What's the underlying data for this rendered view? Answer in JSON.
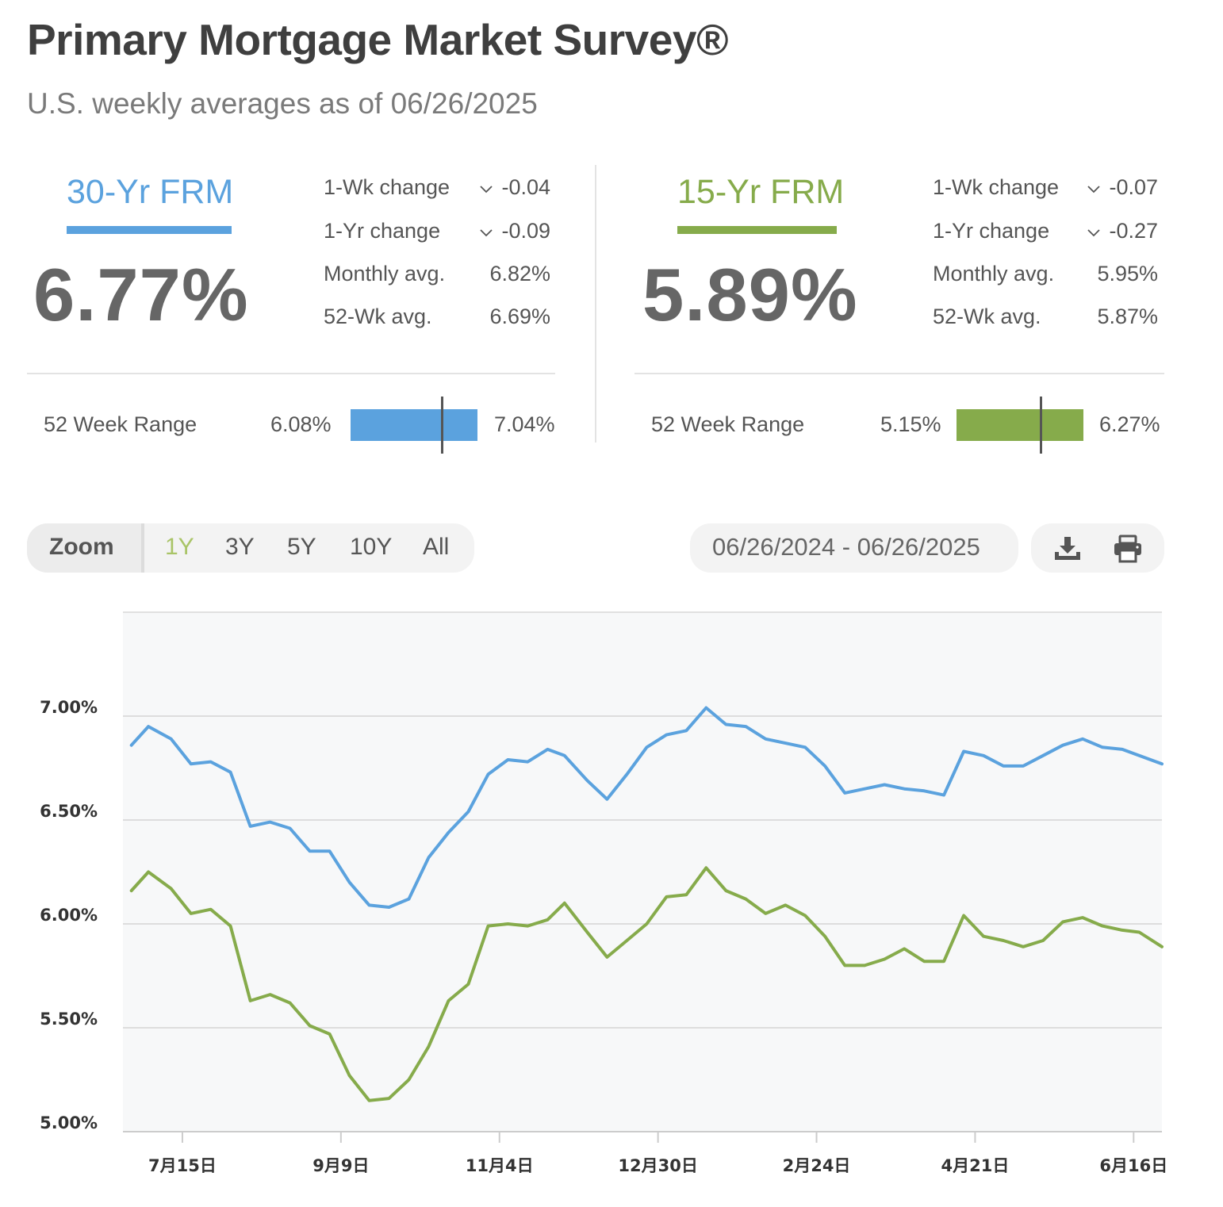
{
  "header": {
    "title": "Primary Mortgage Market Survey®",
    "subtitle": "U.S. weekly averages as of 06/26/2025"
  },
  "rates": [
    {
      "name": "30-Yr FRM",
      "color": "#5ba2de",
      "rate": "6.77%",
      "stats": [
        {
          "label": "1-Wk change",
          "value": "-0.04",
          "arrow": "down"
        },
        {
          "label": "1-Yr change",
          "value": "-0.09",
          "arrow": "down"
        },
        {
          "label": "Monthly avg.",
          "value": "6.82%"
        },
        {
          "label": "52-Wk avg.",
          "value": "6.69%"
        }
      ],
      "range": {
        "label": "52 Week Range",
        "low": "6.08%",
        "high": "7.04%",
        "low_value": 6.08,
        "high_value": 7.04,
        "current_value": 6.77
      }
    },
    {
      "name": "15-Yr FRM",
      "color": "#86ab4b",
      "rate": "5.89%",
      "stats": [
        {
          "label": "1-Wk change",
          "value": "-0.07",
          "arrow": "down"
        },
        {
          "label": "1-Yr change",
          "value": "-0.27",
          "arrow": "down"
        },
        {
          "label": "Monthly avg.",
          "value": "5.95%"
        },
        {
          "label": "52-Wk avg.",
          "value": "5.87%"
        }
      ],
      "range": {
        "label": "52 Week Range",
        "low": "5.15%",
        "high": "6.27%",
        "low_value": 5.15,
        "high_value": 6.27,
        "current_value": 5.89
      }
    }
  ],
  "toolbar": {
    "zoom_label": "Zoom",
    "zoom_options": [
      "1Y",
      "3Y",
      "5Y",
      "10Y",
      "All"
    ],
    "active_zoom": "1Y",
    "date_range": "06/26/2024 - 06/26/2025",
    "icons": [
      "download-icon",
      "print-icon"
    ]
  },
  "chart_data": {
    "type": "line",
    "x": [
      "2024-06-27",
      "2024-07-03",
      "2024-07-11",
      "2024-07-18",
      "2024-07-25",
      "2024-08-01",
      "2024-08-08",
      "2024-08-15",
      "2024-08-22",
      "2024-08-29",
      "2024-09-05",
      "2024-09-12",
      "2024-09-19",
      "2024-09-26",
      "2024-10-03",
      "2024-10-10",
      "2024-10-17",
      "2024-10-24",
      "2024-10-31",
      "2024-11-07",
      "2024-11-14",
      "2024-11-21",
      "2024-11-27",
      "2024-12-05",
      "2024-12-12",
      "2024-12-19",
      "2024-12-26",
      "2025-01-02",
      "2025-01-09",
      "2025-01-16",
      "2025-01-23",
      "2025-01-30",
      "2025-02-06",
      "2025-02-13",
      "2025-02-20",
      "2025-02-27",
      "2025-03-06",
      "2025-03-13",
      "2025-03-20",
      "2025-03-27",
      "2025-04-03",
      "2025-04-10",
      "2025-04-17",
      "2025-04-24",
      "2025-05-01",
      "2025-05-08",
      "2025-05-15",
      "2025-05-22",
      "2025-05-29",
      "2025-06-05",
      "2025-06-12",
      "2025-06-18",
      "2025-06-26"
    ],
    "series": [
      {
        "values": [
          6.86,
          6.95,
          6.89,
          6.77,
          6.78,
          6.73,
          6.47,
          6.49,
          6.46,
          6.35,
          6.35,
          6.2,
          6.09,
          6.08,
          6.12,
          6.32,
          6.44,
          6.54,
          6.72,
          6.79,
          6.78,
          6.84,
          6.81,
          6.69,
          6.6,
          6.72,
          6.85,
          6.91,
          6.93,
          7.04,
          6.96,
          6.95,
          6.89,
          6.87,
          6.85,
          6.76,
          6.63,
          6.65,
          6.67,
          6.65,
          6.64,
          6.62,
          6.83,
          6.81,
          6.76,
          6.76,
          6.81,
          6.86,
          6.89,
          6.85,
          6.84,
          6.81,
          6.77
        ],
        "color": "#5ba2de"
      },
      {
        "values": [
          6.16,
          6.25,
          6.17,
          6.05,
          6.07,
          5.99,
          5.63,
          5.66,
          5.62,
          5.51,
          5.47,
          5.27,
          5.15,
          5.16,
          5.25,
          5.41,
          5.63,
          5.71,
          5.99,
          6.0,
          5.99,
          6.02,
          6.1,
          5.96,
          5.84,
          5.92,
          6.0,
          6.13,
          6.14,
          6.27,
          6.16,
          6.12,
          6.05,
          6.09,
          6.04,
          5.94,
          5.8,
          5.8,
          5.83,
          5.88,
          5.82,
          5.82,
          6.04,
          5.94,
          5.92,
          5.89,
          5.92,
          6.01,
          6.03,
          5.99,
          5.97,
          5.96,
          5.89
        ],
        "color": "#86ab4b"
      }
    ],
    "x_ticks": [
      "7月15日",
      "9月9日",
      "11月4日",
      "12月30日",
      "2月24日",
      "4月21日",
      "6月16日"
    ],
    "x_tick_dates": [
      "2024-07-15",
      "2024-09-09",
      "2024-11-04",
      "2024-12-30",
      "2025-02-24",
      "2025-04-21",
      "2025-06-16"
    ],
    "y_ticks": [
      "5.00%",
      "5.50%",
      "6.00%",
      "6.50%",
      "7.00%"
    ],
    "y_tick_values": [
      5.0,
      5.5,
      6.0,
      6.5,
      7.0
    ],
    "ylim": [
      5.0,
      7.5
    ],
    "xlim": [
      "2024-06-24",
      "2025-06-26"
    ],
    "grid": true,
    "legend": "none"
  }
}
